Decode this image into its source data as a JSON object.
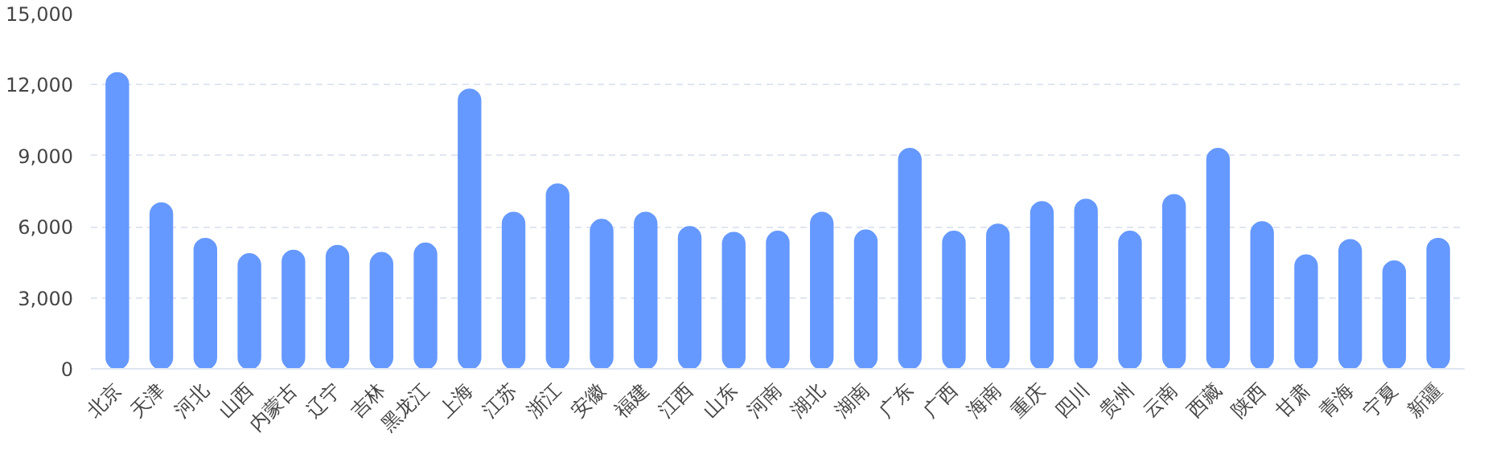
{
  "chart_data": {
    "type": "bar",
    "categories": [
      "北京",
      "天津",
      "河北",
      "山西",
      "内蒙古",
      "辽宁",
      "吉林",
      "黑龙江",
      "上海",
      "江苏",
      "浙江",
      "安徽",
      "福建",
      "江西",
      "山东",
      "河南",
      "湖北",
      "湖南",
      "广东",
      "广西",
      "海南",
      "重庆",
      "四川",
      "贵州",
      "云南",
      "西藏",
      "陕西",
      "甘肃",
      "青海",
      "宁夏",
      "新疆"
    ],
    "values": [
      12500,
      7000,
      5500,
      4850,
      5000,
      5200,
      4900,
      5300,
      11800,
      6600,
      7800,
      6300,
      6600,
      6000,
      5750,
      5800,
      6600,
      5850,
      9300,
      5800,
      6100,
      7050,
      7150,
      5800,
      7350,
      9300,
      6200,
      4800,
      5450,
      4550,
      5500
    ],
    "color": "#6699ff",
    "ylim": [
      0,
      15000
    ],
    "yticks": [
      {
        "value": 0,
        "label": "0"
      },
      {
        "value": 3000,
        "label": "3,000"
      },
      {
        "value": 6000,
        "label": "6,000"
      },
      {
        "value": 9000,
        "label": "9,000"
      },
      {
        "value": 12000,
        "label": "12,000"
      },
      {
        "value": 15000,
        "label": "15,000"
      }
    ],
    "grid": "y"
  }
}
